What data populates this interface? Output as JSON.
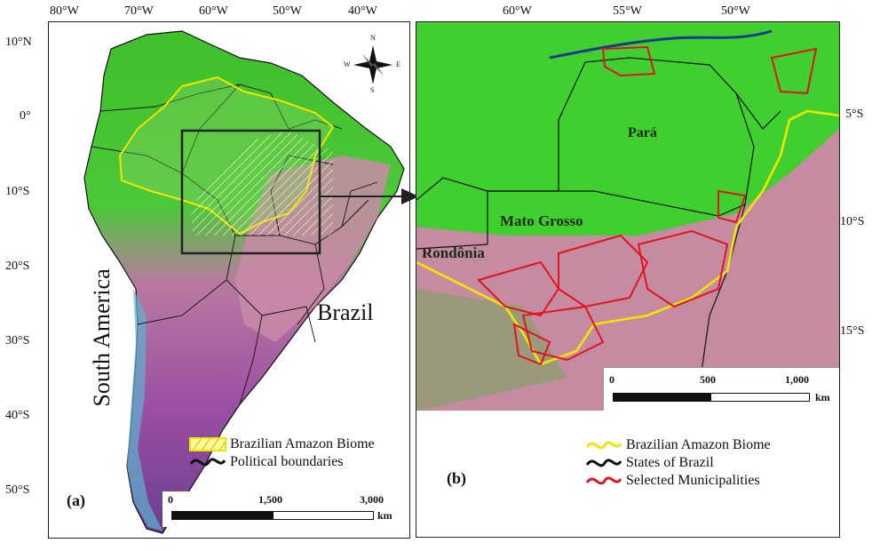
{
  "panel_a": {
    "label": "(a)",
    "lon_ticks": [
      "80°W",
      "70°W",
      "60°W",
      "50°W",
      "40°W"
    ],
    "lat_ticks": [
      "10°N",
      "0°",
      "10°S",
      "20°S",
      "30°S",
      "40°S",
      "50°S"
    ],
    "continent_label": "South America",
    "country_label": "Brazil",
    "compass": {
      "n": "N",
      "s": "S",
      "e": "E",
      "w": "W"
    },
    "legend": [
      {
        "text": "Brazilian Amazon Biome",
        "color": "#f2e600"
      },
      {
        "text": "Political boundaries",
        "color": "#111111"
      }
    ],
    "scale": {
      "ticks": [
        "0",
        "1,500",
        "3,000"
      ],
      "unit": "km"
    }
  },
  "panel_b": {
    "label": "(b)",
    "lon_ticks": [
      "60°W",
      "55°W",
      "50°W"
    ],
    "lat_ticks": [
      "5°S",
      "10°S",
      "15°S"
    ],
    "state_labels": [
      "Pará",
      "Mato Grosso",
      "Rondônia"
    ],
    "legend": [
      {
        "text": "Brazilian Amazon Biome",
        "color": "#f2e600"
      },
      {
        "text": "States of Brazil",
        "color": "#111111"
      },
      {
        "text": "Selected Municipalities",
        "color": "#e0141e"
      }
    ],
    "scale": {
      "ticks": [
        "0",
        "500",
        "1,000"
      ],
      "unit": "km"
    }
  }
}
